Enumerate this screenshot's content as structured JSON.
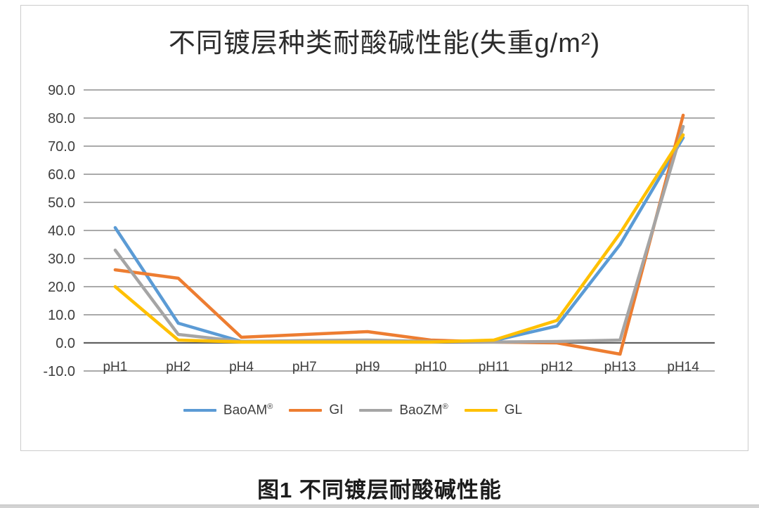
{
  "page": {
    "caption": "图1 不同镀层耐酸碱性能"
  },
  "chart_data": {
    "type": "line",
    "title": "不同镀层种类耐酸碱性能(失重g/m²)",
    "xlabel": "",
    "ylabel": "",
    "categories": [
      "pH1",
      "pH2",
      "pH4",
      "pH7",
      "pH9",
      "pH10",
      "pH11",
      "pH12",
      "pH13",
      "pH14"
    ],
    "series": [
      {
        "name": "BaoAM®",
        "color": "#5B9BD5",
        "values": [
          41,
          7,
          0.5,
          0.5,
          0.5,
          0.3,
          0.8,
          6,
          35,
          73
        ]
      },
      {
        "name": "GI",
        "color": "#ED7D31",
        "values": [
          26,
          23,
          2,
          3,
          4,
          1,
          0.3,
          0,
          -4,
          81
        ]
      },
      {
        "name": "BaoZM®",
        "color": "#A5A5A5",
        "values": [
          33,
          3,
          0.5,
          0.8,
          1,
          0.5,
          0.3,
          0.5,
          1,
          77
        ]
      },
      {
        "name": "GL",
        "color": "#FFC000",
        "values": [
          20,
          1,
          0.3,
          0.3,
          0.3,
          0.3,
          1,
          8,
          39,
          74
        ]
      }
    ],
    "ylim": [
      -10,
      90
    ],
    "yticks": [
      "90.0",
      "80.0",
      "70.0",
      "60.0",
      "50.0",
      "40.0",
      "30.0",
      "20.0",
      "10.0",
      "0.0",
      "-10.0"
    ],
    "grid": "horizontal",
    "legend_position": "bottom",
    "axis_text_color": "#3d3d3d",
    "gridline_color": "#8e8e8e",
    "zero_line_color": "#616161"
  }
}
